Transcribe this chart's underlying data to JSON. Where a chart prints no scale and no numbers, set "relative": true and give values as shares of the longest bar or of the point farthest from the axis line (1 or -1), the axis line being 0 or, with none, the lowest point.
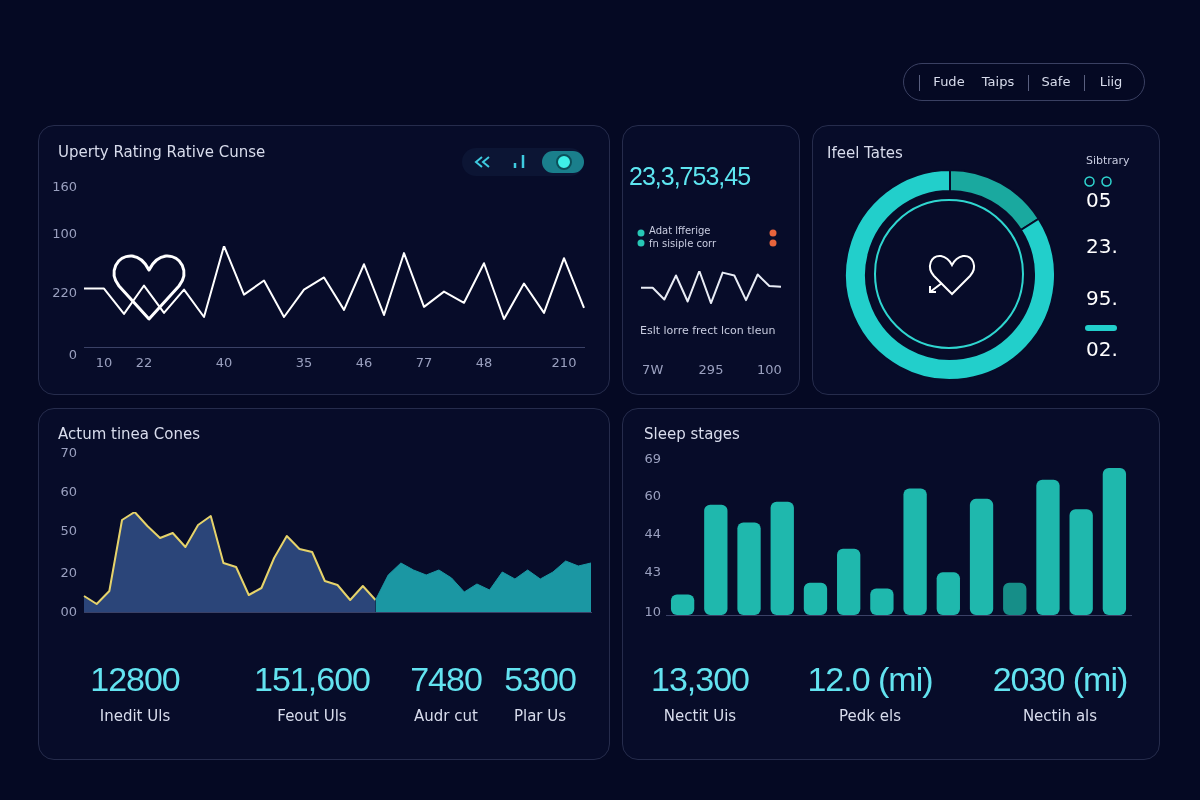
{
  "chart_data": [
    {
      "type": "line",
      "title": "Uperty Rating Rative Cunse",
      "relative": true,
      "color": "#ffffff",
      "categories": [
        null,
        "10",
        null,
        "22",
        null,
        null,
        null,
        "40",
        null,
        null,
        null,
        "35",
        null,
        null,
        "46",
        null,
        null,
        "77",
        null,
        null,
        "48",
        null,
        null,
        null,
        "210",
        null
      ],
      "values": [
        0.58,
        0.58,
        0.33,
        0.61,
        0.34,
        0.57,
        0.3,
        1,
        0.52,
        0.66,
        0.3,
        0.57,
        0.69,
        0.37,
        0.82,
        0.32,
        0.93,
        0.4,
        0.55,
        0.44,
        0.83,
        0.28,
        0.63,
        0.34,
        0.88,
        0.39
      ],
      "annotations": [
        "160",
        "100",
        "220",
        "0"
      ],
      "legend": false
    },
    {
      "type": "line",
      "title": "23,3,753,45",
      "relative": true,
      "color": "#e8ecf5",
      "categories": [
        null,
        "7W",
        null,
        null,
        null,
        null,
        "295",
        null,
        null,
        null,
        null,
        "100",
        null
      ],
      "values": [
        0.48,
        0.48,
        0.11,
        0.86,
        0.05,
        1,
        0,
        0.95,
        0.86,
        0.09,
        0.89,
        0.53,
        0.51
      ],
      "annotations": [
        "Adat lfferige",
        "fn sisiple corr",
        "Eslt lorre frect lcon tleun"
      ],
      "legend": false
    },
    {
      "type": "donut",
      "title": "Ifeel Tates",
      "categories": [
        null,
        null
      ],
      "values": [
        16,
        84
      ],
      "colors": [
        "#1aa99f",
        "#22cfcb"
      ],
      "annotations": [
        "Sibtrary",
        "05",
        "23.",
        "95.",
        "02."
      ],
      "legend": false
    },
    {
      "type": "area",
      "title": "Actum tinea Cones",
      "relative": true,
      "categories": [
        null,
        null,
        null,
        null,
        null,
        null,
        null,
        null,
        null,
        null,
        null,
        null,
        null,
        null,
        null,
        null,
        null,
        null,
        null,
        null,
        null,
        null,
        null,
        null,
        null,
        null,
        null,
        null,
        null,
        null,
        null,
        null,
        null,
        null,
        null,
        null,
        null,
        null,
        null,
        null,
        null
      ],
      "series": [
        {
          "type": "area",
          "color": "#2b4579",
          "values": [
            0.16,
            0.08,
            0.21,
            0.92,
            1,
            0.86,
            0.74,
            0.79,
            0.65,
            0.87,
            0.96,
            0.49,
            0.45,
            0.17,
            0.24,
            0.54,
            0.76,
            0.63,
            0.6,
            0.31,
            0.27,
            0.12,
            0.26,
            0.12,
            null,
            null,
            null,
            null,
            null,
            null,
            null,
            null,
            null,
            null,
            null,
            null,
            null,
            null,
            null,
            null,
            null
          ]
        },
        {
          "type": "line",
          "color": "#e6d36a",
          "values": [
            0.16,
            0.08,
            0.21,
            0.92,
            1,
            0.86,
            0.74,
            0.79,
            0.65,
            0.87,
            0.96,
            0.49,
            0.45,
            0.17,
            0.24,
            0.54,
            0.76,
            0.63,
            0.6,
            0.31,
            0.27,
            0.12,
            0.26,
            0.12,
            null,
            null,
            null,
            null,
            null,
            null,
            null,
            null,
            null,
            null,
            null,
            null,
            null,
            null,
            null,
            null,
            null
          ]
        },
        {
          "type": "area",
          "color": "#1b97a3",
          "values": [
            null,
            null,
            null,
            null,
            null,
            null,
            null,
            null,
            null,
            null,
            null,
            null,
            null,
            null,
            null,
            null,
            null,
            null,
            null,
            null,
            null,
            null,
            null,
            0.12,
            0.37,
            0.49,
            0.42,
            0.37,
            0.42,
            0.34,
            0.2,
            0.28,
            0.22,
            0.4,
            0.33,
            0.42,
            0.33,
            0.4,
            0.51,
            0.46,
            0.49
          ]
        }
      ],
      "annotations": [
        "70",
        "60",
        "50",
        "20",
        "00"
      ],
      "legend": false
    },
    {
      "type": "other",
      "annotations": [
        "12800",
        "Inedit Uls",
        "151,600",
        "Feout Uls",
        "7480",
        "Audr cut",
        "5300",
        "Plar Us"
      ]
    },
    {
      "type": "bar",
      "title": "Sleep stages",
      "relative": true,
      "categories": [
        null,
        null,
        null,
        null,
        null,
        null,
        null,
        null,
        null,
        null,
        null,
        null,
        null,
        null
      ],
      "values": [
        0.14,
        0.75,
        0.63,
        0.77,
        0.22,
        0.45,
        0.18,
        0.86,
        0.29,
        0.79,
        0.22,
        0.92,
        0.72,
        1
      ],
      "colors": [
        "#1fb8ad",
        "#1fb8ad",
        "#1fb8ad",
        "#1fb8ad",
        "#1fb8ad",
        "#1fb8ad",
        "#1fb8ad",
        "#1fb8ad",
        "#1fb8ad",
        "#1fb8ad",
        "#168e88",
        "#1fb8ad",
        "#1fb8ad",
        "#1fb8ad"
      ],
      "annotations": [
        "69",
        "60",
        "44",
        "43",
        "10"
      ],
      "legend": false
    },
    {
      "type": "other",
      "annotations": [
        "13,300",
        "Nectit Uis",
        "12.0 (mi)",
        "Pedk els",
        "2030 (mi)",
        "Nectih als"
      ]
    },
    {
      "type": "other",
      "annotations": [
        "Fude",
        "Taips",
        "Safe",
        "Liig"
      ]
    }
  ]
}
